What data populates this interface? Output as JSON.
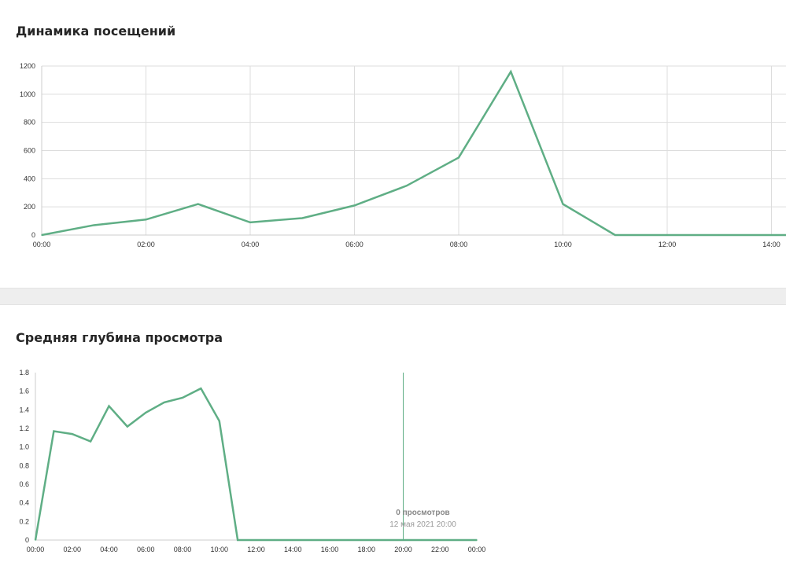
{
  "panels": {
    "visits": {
      "title": "Динамика посещений"
    },
    "depth": {
      "title": "Средняя глубина просмотра"
    }
  },
  "colors": {
    "line": "#5fae85",
    "grid": "#dddddd",
    "axis": "#cccccc",
    "separator": "#eeeeee"
  },
  "chart_data": [
    {
      "type": "line",
      "title": "Динамика посещений",
      "xlabel": "",
      "ylabel": "",
      "x_tick_labels": [
        "00:00",
        "02:00",
        "04:00",
        "06:00",
        "08:00",
        "10:00",
        "12:00",
        "14:00"
      ],
      "y_tick_labels": [
        "0",
        "200",
        "400",
        "600",
        "800",
        "1000",
        "1200"
      ],
      "ylim": [
        0,
        1200
      ],
      "x": [
        "00:00",
        "01:00",
        "02:00",
        "03:00",
        "04:00",
        "05:00",
        "06:00",
        "07:00",
        "08:00",
        "09:00",
        "10:00",
        "11:00",
        "12:00",
        "13:00",
        "14:00",
        "14:20"
      ],
      "series": [
        {
          "values": [
            0,
            70,
            110,
            220,
            90,
            120,
            210,
            350,
            550,
            1160,
            220,
            0,
            0,
            0,
            0,
            0
          ]
        }
      ],
      "grid": true,
      "vertical_gridlines": true
    },
    {
      "type": "line",
      "title": "Средняя глубина просмотра",
      "xlabel": "",
      "ylabel": "",
      "x_tick_labels": [
        "00:00",
        "02:00",
        "04:00",
        "06:00",
        "08:00",
        "10:00",
        "12:00",
        "14:00",
        "16:00",
        "18:00",
        "20:00",
        "22:00",
        "00:00"
      ],
      "y_tick_labels": [
        "0",
        "0.2",
        "0.4",
        "0.6",
        "0.8",
        "1.0",
        "1.2",
        "1.4",
        "1.6",
        "1.8"
      ],
      "ylim": [
        0,
        1.8
      ],
      "x": [
        "00:00",
        "01:00",
        "02:00",
        "03:00",
        "04:00",
        "05:00",
        "06:00",
        "07:00",
        "08:00",
        "09:00",
        "10:00",
        "11:00",
        "12:00",
        "13:00",
        "14:00",
        "15:00",
        "16:00",
        "17:00",
        "18:00",
        "19:00",
        "20:00",
        "21:00",
        "22:00",
        "23:00",
        "00:00"
      ],
      "series": [
        {
          "values": [
            0,
            1.17,
            1.14,
            1.06,
            1.44,
            1.22,
            1.37,
            1.48,
            1.53,
            1.63,
            1.28,
            0,
            0,
            0,
            0,
            0,
            0,
            0,
            0,
            0,
            0,
            0,
            0,
            0,
            0
          ]
        }
      ],
      "grid": false,
      "tooltip": {
        "value": "0 просмотров",
        "date": "12 мая 2021 20:00"
      }
    }
  ]
}
